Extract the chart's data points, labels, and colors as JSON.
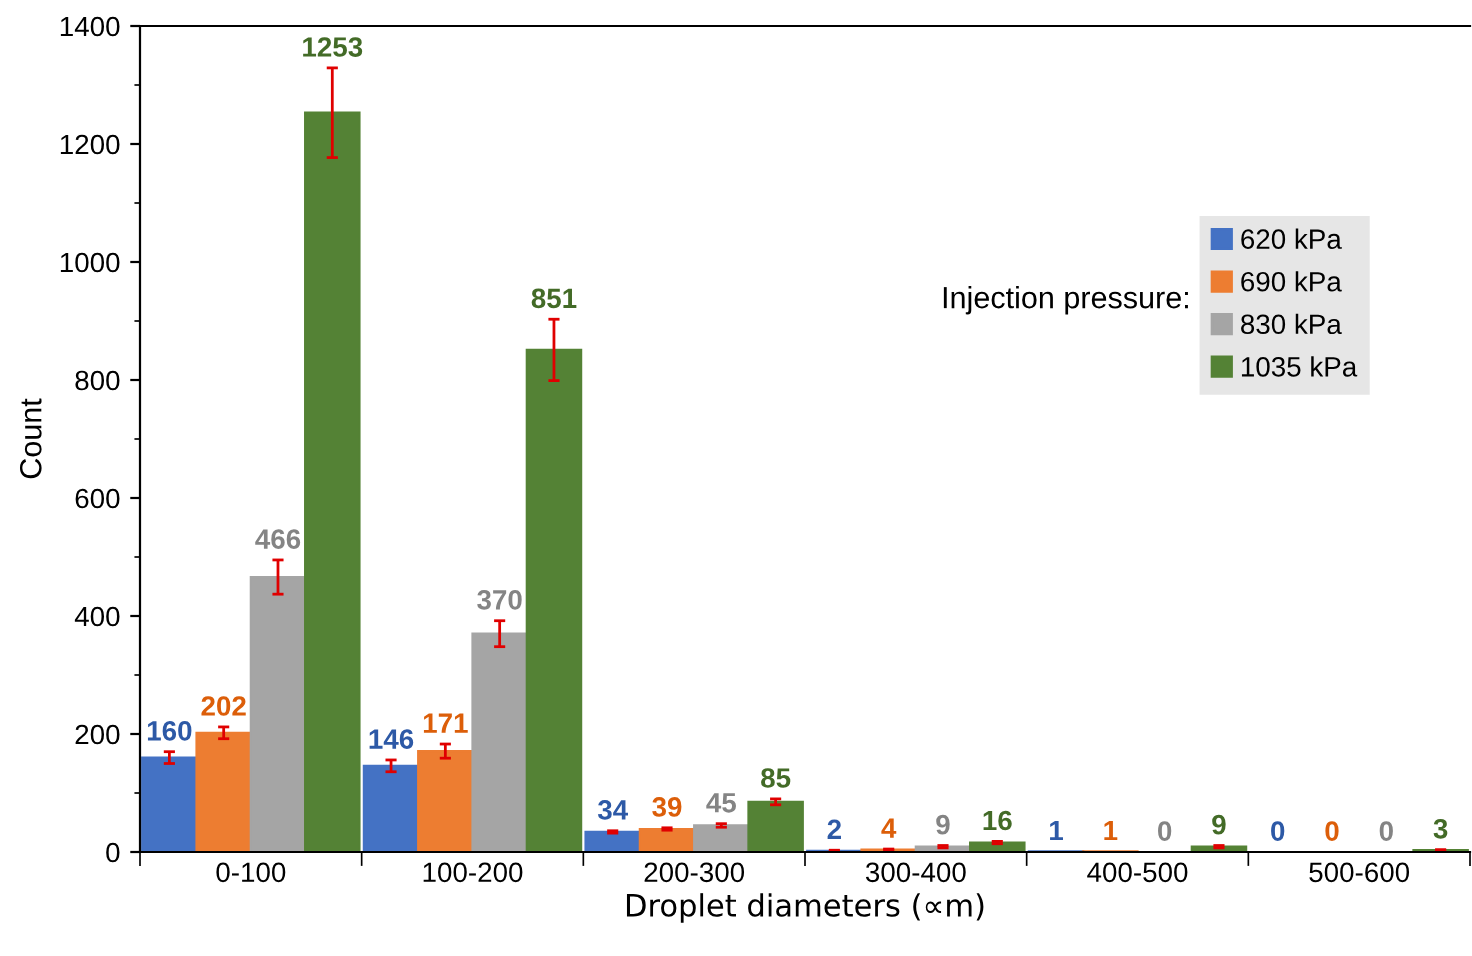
{
  "chart_data": {
    "type": "bar",
    "xlabel": "Droplet diameters (∝m)",
    "ylabel": "Count",
    "legend_title": "Injection pressure:",
    "categories": [
      "0-100",
      "100-200",
      "200-300",
      "300-400",
      "400-500",
      "500-600"
    ],
    "series": [
      {
        "name": "620 kPa",
        "color": "#4472c4",
        "values": [
          160,
          146,
          34,
          2,
          1,
          0
        ],
        "errors": [
          10,
          10,
          2,
          1,
          null,
          null
        ]
      },
      {
        "name": "690 kPa",
        "color": "#ed7d31",
        "values": [
          202,
          171,
          39,
          4,
          1,
          0
        ],
        "errors": [
          10,
          12,
          2,
          1,
          null,
          null
        ]
      },
      {
        "name": "830 kPa",
        "color": "#a5a5a5",
        "values": [
          466,
          370,
          45,
          9,
          0,
          0
        ],
        "errors": [
          29,
          22,
          3,
          2,
          null,
          null
        ]
      },
      {
        "name": "1035 kPa",
        "color": "#548235",
        "values": [
          1253,
          851,
          85,
          16,
          9,
          3
        ],
        "errors": [
          76,
          52,
          5,
          2,
          2,
          1
        ]
      }
    ],
    "ylim": [
      0,
      1400
    ],
    "yticks": [
      0,
      200,
      400,
      600,
      800,
      1000,
      1200,
      1400
    ],
    "data_labels": true,
    "legend": "top right",
    "grid": false
  }
}
